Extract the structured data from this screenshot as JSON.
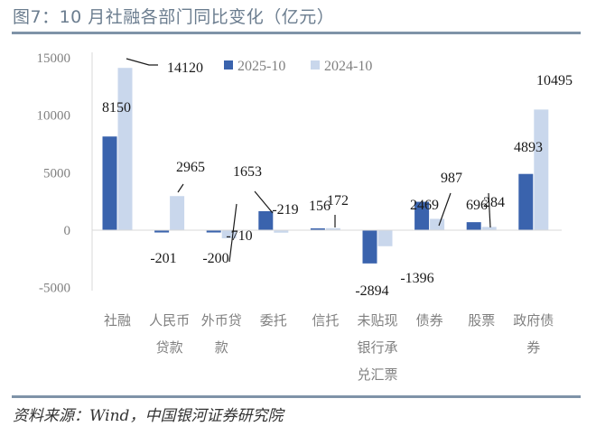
{
  "header": {
    "title": "图7：10 月社融各部门同比变化（亿元）"
  },
  "footer": {
    "source": "资料来源：Wind，中国银河证券研究院"
  },
  "colors": {
    "series_2025": "#3a63ad",
    "series_2024": "#c9d7ec",
    "rule": "#7f93a8",
    "axis_text": "#808080"
  },
  "chart_data": {
    "type": "bar",
    "title": "10 月社融各部门同比变化（亿元）",
    "xlabel": "",
    "ylabel": "",
    "ylim": [
      -5000,
      15000
    ],
    "yticks": [
      15000,
      10000,
      5000,
      0,
      -5000
    ],
    "grid": false,
    "legend_position": "top-right",
    "categories": [
      "社融",
      "人民币贷款",
      "外币贷款",
      "委托",
      "信托",
      "未贴现银行承兑汇票",
      "债券",
      "股票",
      "政府债券"
    ],
    "category_lines": [
      [
        "社融"
      ],
      [
        "人民币",
        "贷款"
      ],
      [
        "外币贷",
        "款"
      ],
      [
        "委托"
      ],
      [
        "信托"
      ],
      [
        "未贴现",
        "银行承",
        "兑汇票"
      ],
      [
        "债券"
      ],
      [
        "股票"
      ],
      [
        "政府债",
        "券"
      ]
    ],
    "series": [
      {
        "name": "2025-10",
        "values": [
          8150,
          -201,
          -200,
          1653,
          156,
          -2894,
          2469,
          696,
          4893
        ]
      },
      {
        "name": "2024-10",
        "values": [
          14120,
          2965,
          -710,
          -219,
          172,
          -1396,
          987,
          284,
          10495
        ]
      }
    ]
  }
}
